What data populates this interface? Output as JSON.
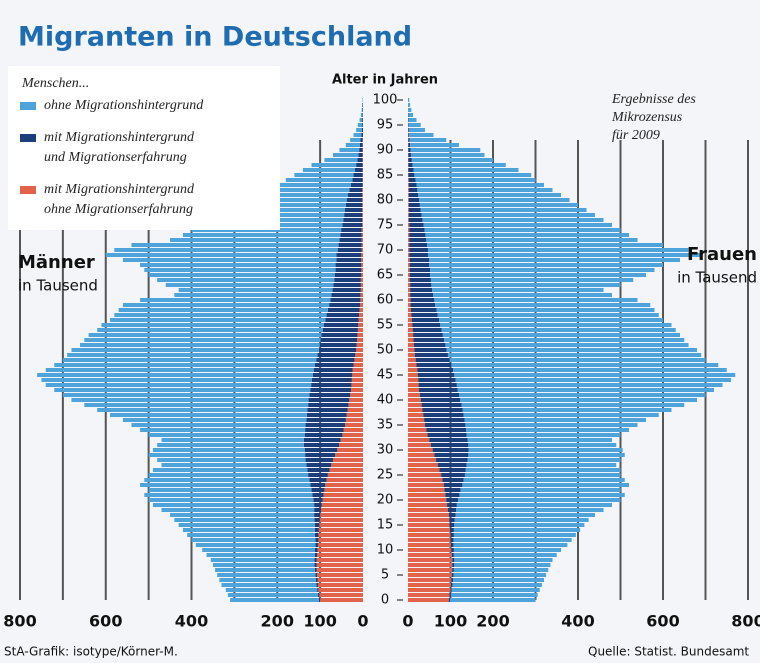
{
  "chart_data": {
    "type": "pyramid",
    "title": "Migranten in Deutschland",
    "legend_title": "Menschen...",
    "y_label": "Alter in Jahren",
    "note": [
      "Ergebnisse des",
      "Mikrozensus",
      "für 2009"
    ],
    "left": {
      "label": "Männer",
      "unit": "in Tausend"
    },
    "right": {
      "label": "Frauen",
      "unit": "in Tausend"
    },
    "footer_left": "StA-Grafik: isotype/Körner-M.",
    "footer_right": "Quelle: Statist. Bundesamt",
    "xlim": [
      0,
      800
    ],
    "xticks": [
      0,
      100,
      200,
      400,
      600,
      800
    ],
    "xgrid": [
      100,
      200,
      300,
      400,
      500,
      600,
      700,
      800
    ],
    "ylim": [
      0,
      100
    ],
    "yticks": [
      0,
      5,
      10,
      15,
      20,
      25,
      30,
      35,
      40,
      45,
      50,
      55,
      60,
      65,
      70,
      75,
      80,
      85,
      90,
      95,
      100
    ],
    "ages": [
      0,
      1,
      2,
      3,
      4,
      5,
      6,
      7,
      8,
      9,
      10,
      11,
      12,
      13,
      14,
      15,
      16,
      17,
      18,
      19,
      20,
      21,
      22,
      23,
      24,
      25,
      26,
      27,
      28,
      29,
      30,
      31,
      32,
      33,
      34,
      35,
      36,
      37,
      38,
      39,
      40,
      41,
      42,
      43,
      44,
      45,
      46,
      47,
      48,
      49,
      50,
      51,
      52,
      53,
      54,
      55,
      56,
      57,
      58,
      59,
      60,
      61,
      62,
      63,
      64,
      65,
      66,
      67,
      68,
      69,
      70,
      71,
      72,
      73,
      74,
      75,
      76,
      77,
      78,
      79,
      80,
      81,
      82,
      83,
      84,
      85,
      86,
      87,
      88,
      89,
      90,
      91,
      92,
      93,
      94,
      95,
      96,
      97,
      98,
      99,
      100
    ],
    "series": [
      {
        "name": [
          "ohne Migrationshintergrund"
        ],
        "color": "#4ea4da",
        "left": [
          207,
          210,
          213,
          221,
          225,
          229,
          233,
          237,
          242,
          253,
          263,
          279,
          289,
          298,
          308,
          318,
          327,
          336,
          356,
          376,
          384,
          392,
          380,
          397,
          385,
          372,
          360,
          338,
          346,
          365,
          354,
          342,
          332,
          364,
          385,
          406,
          428,
          459,
          490,
          522,
          553,
          575,
          597,
          619,
          631,
          643,
          625,
          608,
          591,
          584,
          577,
          559,
          551,
          543,
          526,
          519,
          502,
          495,
          488,
          481,
          444,
          366,
          359,
          391,
          413,
          434,
          446,
          456,
          498,
          538,
          521,
          483,
          395,
          367,
          349,
          332,
          314,
          286,
          258,
          240,
          222,
          205,
          178,
          172,
          155,
          138,
          121,
          104,
          77,
          59,
          46,
          33,
          24,
          18,
          13,
          10,
          6,
          4,
          2,
          1,
          1
        ],
        "right": [
          201,
          204,
          207,
          210,
          214,
          218,
          222,
          226,
          231,
          242,
          252,
          268,
          278,
          287,
          297,
          306,
          315,
          328,
          347,
          365,
          382,
          389,
          376,
          392,
          379,
          366,
          364,
          352,
          360,
          368,
          362,
          348,
          340,
          362,
          383,
          405,
          427,
          459,
          491,
          524,
          557,
          580,
          603,
          625,
          648,
          661,
          644,
          628,
          602,
          596,
          589,
          572,
          565,
          558,
          551,
          544,
          527,
          520,
          513,
          506,
          478,
          421,
          403,
          445,
          476,
          508,
          528,
          550,
          590,
          643,
          613,
          555,
          497,
          479,
          461,
          443,
          426,
          408,
          390,
          372,
          354,
          336,
          318,
          300,
          282,
          275,
          247,
          219,
          191,
          173,
          164,
          115,
          86,
          57,
          37,
          29,
          19,
          11,
          8,
          5,
          3
        ]
      },
      {
        "name": [
          "mit Migrationshintergrund",
          "und Migrationserfahrung"
        ],
        "color": "#1c3f7c",
        "left": [
          3,
          3,
          3,
          4,
          4,
          4,
          4,
          5,
          5,
          5,
          6,
          6,
          7,
          8,
          9,
          10,
          12,
          14,
          16,
          18,
          22,
          26,
          30,
          35,
          40,
          46,
          52,
          58,
          64,
          70,
          76,
          82,
          86,
          88,
          90,
          92,
          92,
          93,
          94,
          94,
          95,
          95,
          95,
          94,
          93,
          92,
          91,
          90,
          89,
          88,
          87,
          86,
          85,
          84,
          82,
          80,
          78,
          76,
          74,
          72,
          70,
          68,
          66,
          64,
          62,
          62,
          60,
          60,
          58,
          58,
          56,
          54,
          52,
          50,
          48,
          46,
          44,
          42,
          40,
          38,
          36,
          33,
          30,
          27,
          24,
          21,
          18,
          15,
          12,
          10,
          8,
          6,
          5,
          4,
          3,
          2,
          2,
          1,
          1,
          1,
          0
        ],
        "right": [
          3,
          3,
          3,
          4,
          4,
          4,
          4,
          5,
          5,
          5,
          6,
          6,
          7,
          8,
          9,
          11,
          13,
          16,
          19,
          23,
          28,
          33,
          38,
          44,
          50,
          56,
          62,
          68,
          74,
          80,
          85,
          88,
          90,
          92,
          94,
          95,
          95,
          95,
          95,
          94,
          93,
          92,
          91,
          90,
          88,
          86,
          84,
          82,
          80,
          78,
          76,
          74,
          72,
          70,
          68,
          66,
          64,
          62,
          60,
          58,
          56,
          54,
          52,
          50,
          50,
          48,
          48,
          46,
          46,
          44,
          44,
          42,
          40,
          38,
          36,
          34,
          32,
          30,
          28,
          26,
          24,
          22,
          20,
          18,
          16,
          14,
          12,
          10,
          8,
          6,
          5,
          4,
          3,
          2,
          2,
          1,
          1,
          1,
          0,
          0,
          0
        ]
      },
      {
        "name": [
          "mit Migrationshintergrund",
          "ohne Migrationserfahrung"
        ],
        "color": "#e2634b",
        "left": [
          100,
          102,
          104,
          105,
          106,
          107,
          108,
          108,
          108,
          107,
          106,
          105,
          104,
          104,
          103,
          102,
          101,
          100,
          98,
          96,
          94,
          92,
          90,
          88,
          85,
          82,
          78,
          74,
          70,
          65,
          60,
          56,
          52,
          48,
          45,
          42,
          40,
          38,
          36,
          34,
          32,
          30,
          28,
          27,
          26,
          25,
          24,
          22,
          20,
          18,
          16,
          15,
          14,
          13,
          12,
          11,
          10,
          9,
          8,
          7,
          6,
          6,
          5,
          5,
          5,
          4,
          4,
          4,
          4,
          4,
          3,
          3,
          3,
          3,
          3,
          2,
          2,
          2,
          2,
          2,
          2,
          2,
          2,
          1,
          1,
          1,
          1,
          1,
          1,
          1,
          1,
          1,
          1,
          0,
          0,
          0,
          0,
          0,
          0,
          0,
          0
        ],
        "right": [
          96,
          98,
          100,
          101,
          102,
          103,
          104,
          104,
          104,
          103,
          102,
          101,
          100,
          100,
          99,
          98,
          97,
          96,
          94,
          92,
          90,
          88,
          86,
          84,
          81,
          78,
          74,
          70,
          66,
          62,
          58,
          54,
          50,
          46,
          43,
          40,
          38,
          36,
          34,
          32,
          30,
          28,
          26,
          25,
          24,
          23,
          22,
          20,
          18,
          16,
          15,
          14,
          13,
          12,
          11,
          10,
          9,
          8,
          7,
          6,
          6,
          5,
          5,
          5,
          4,
          4,
          4,
          4,
          4,
          3,
          3,
          3,
          3,
          3,
          3,
          3,
          2,
          2,
          2,
          2,
          2,
          2,
          2,
          2,
          2,
          1,
          1,
          1,
          1,
          1,
          1,
          1,
          1,
          1,
          1,
          0,
          0,
          0,
          0,
          0,
          0
        ]
      }
    ]
  }
}
